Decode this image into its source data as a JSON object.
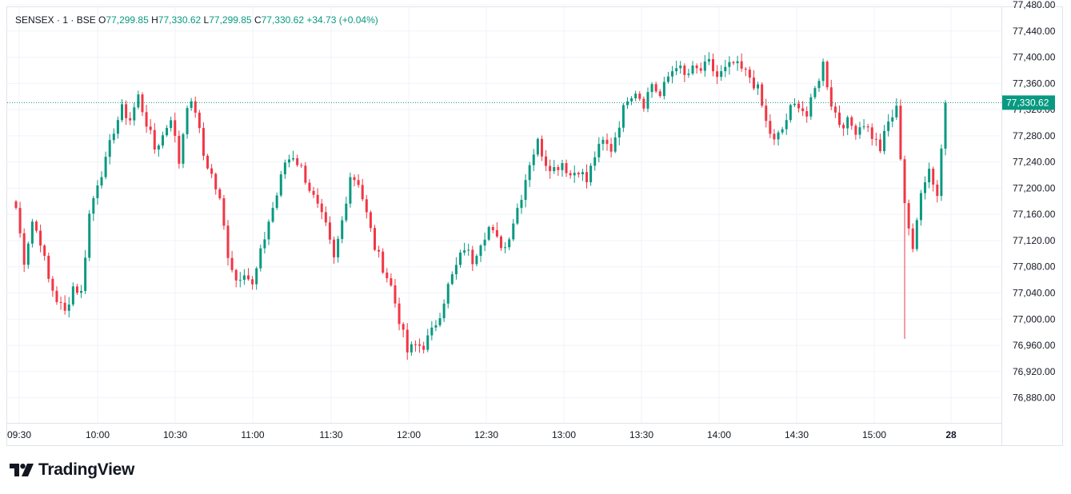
{
  "legend": {
    "symbol": "SENSEX · 1 · BSE",
    "o_label": "O",
    "o_value": "77,299.85",
    "h_label": "H",
    "h_value": "77,330.62",
    "l_label": "L",
    "l_value": "77,299.85",
    "c_label": "C",
    "c_value": "77,330.62",
    "change": "+34.73 (+0.04%)"
  },
  "brand": {
    "logo_text": "TradingView"
  },
  "colors": {
    "up": "#089981",
    "down": "#f23645",
    "grid": "#f0f3fa",
    "text": "#131722"
  },
  "chart_data": {
    "type": "candlestick",
    "symbol": "SENSEX",
    "interval": "1",
    "exchange": "BSE",
    "ylim": [
      76860,
      77480
    ],
    "y_ticks": [
      76880,
      76920,
      76960,
      77000,
      77040,
      77080,
      77120,
      77160,
      77200,
      77240,
      77280,
      77320,
      77360,
      77400,
      77440,
      77480
    ],
    "y_tick_labels": [
      "76,880.00",
      "76,920.00",
      "76,960.00",
      "77,000.00",
      "77,040.00",
      "77,080.00",
      "77,120.00",
      "77,160.00",
      "77,200.00",
      "77,240.00",
      "77,280.00",
      "77,320.00",
      "77,360.00",
      "77,400.00",
      "77,440.00",
      "77,480.00"
    ],
    "x_tick_labels": [
      "09:30",
      "10:00",
      "10:30",
      "11:00",
      "11:30",
      "12:00",
      "12:30",
      "13:00",
      "13:30",
      "14:00",
      "14:30",
      "15:00",
      "28"
    ],
    "x_tick_bold": [
      false,
      false,
      false,
      false,
      false,
      false,
      false,
      false,
      false,
      false,
      false,
      false,
      true
    ],
    "last_price": 77330.62,
    "last_price_label": "77,330.62",
    "grid": true,
    "close_path": [
      [
        0,
        77170
      ],
      [
        2,
        77090
      ],
      [
        4,
        77150
      ],
      [
        6,
        77120
      ],
      [
        8,
        77060
      ],
      [
        10,
        77030
      ],
      [
        12,
        77010
      ],
      [
        14,
        77050
      ],
      [
        16,
        77040
      ],
      [
        18,
        77160
      ],
      [
        20,
        77210
      ],
      [
        22,
        77240
      ],
      [
        24,
        77290
      ],
      [
        26,
        77320
      ],
      [
        28,
        77305
      ],
      [
        30,
        77340
      ],
      [
        32,
        77300
      ],
      [
        34,
        77260
      ],
      [
        36,
        77280
      ],
      [
        38,
        77310
      ],
      [
        40,
        77240
      ],
      [
        42,
        77330
      ],
      [
        44,
        77320
      ],
      [
        46,
        77250
      ],
      [
        48,
        77220
      ],
      [
        50,
        77180
      ],
      [
        52,
        77100
      ],
      [
        54,
        77060
      ],
      [
        56,
        77075
      ],
      [
        58,
        77050
      ],
      [
        60,
        77100
      ],
      [
        62,
        77150
      ],
      [
        64,
        77190
      ],
      [
        66,
        77240
      ],
      [
        68,
        77250
      ],
      [
        70,
        77230
      ],
      [
        72,
        77200
      ],
      [
        74,
        77170
      ],
      [
        76,
        77140
      ],
      [
        78,
        77090
      ],
      [
        80,
        77150
      ],
      [
        82,
        77220
      ],
      [
        84,
        77210
      ],
      [
        86,
        77160
      ],
      [
        88,
        77110
      ],
      [
        90,
        77080
      ],
      [
        92,
        77050
      ],
      [
        94,
        77000
      ],
      [
        96,
        76950
      ],
      [
        98,
        76960
      ],
      [
        100,
        76960
      ],
      [
        102,
        76980
      ],
      [
        104,
        77010
      ],
      [
        106,
        77050
      ],
      [
        108,
        77080
      ],
      [
        110,
        77110
      ],
      [
        112,
        77090
      ],
      [
        114,
        77120
      ],
      [
        116,
        77140
      ],
      [
        118,
        77120
      ],
      [
        120,
        77110
      ],
      [
        122,
        77150
      ],
      [
        124,
        77190
      ],
      [
        126,
        77240
      ],
      [
        128,
        77270
      ],
      [
        130,
        77240
      ],
      [
        132,
        77230
      ],
      [
        134,
        77240
      ],
      [
        136,
        77220
      ],
      [
        138,
        77230
      ],
      [
        140,
        77210
      ],
      [
        142,
        77250
      ],
      [
        144,
        77270
      ],
      [
        146,
        77260
      ],
      [
        148,
        77300
      ],
      [
        150,
        77340
      ],
      [
        152,
        77350
      ],
      [
        154,
        77330
      ],
      [
        156,
        77360
      ],
      [
        158,
        77340
      ],
      [
        160,
        77370
      ],
      [
        162,
        77390
      ],
      [
        164,
        77370
      ],
      [
        166,
        77380
      ],
      [
        168,
        77380
      ],
      [
        170,
        77390
      ],
      [
        172,
        77370
      ],
      [
        174,
        77380
      ],
      [
        176,
        77390
      ],
      [
        178,
        77380
      ],
      [
        180,
        77370
      ],
      [
        182,
        77350
      ],
      [
        184,
        77300
      ],
      [
        186,
        77270
      ],
      [
        188,
        77290
      ],
      [
        190,
        77320
      ],
      [
        192,
        77330
      ],
      [
        194,
        77310
      ],
      [
        196,
        77350
      ],
      [
        198,
        77390
      ],
      [
        200,
        77330
      ],
      [
        202,
        77300
      ],
      [
        204,
        77300
      ],
      [
        206,
        77290
      ],
      [
        208,
        77300
      ],
      [
        210,
        77280
      ],
      [
        212,
        77260
      ],
      [
        214,
        77300
      ],
      [
        216,
        77320
      ],
      [
        218,
        77180
      ],
      [
        220,
        77100
      ],
      [
        222,
        77200
      ],
      [
        224,
        77230
      ],
      [
        226,
        77190
      ],
      [
        228,
        77330.62
      ]
    ]
  }
}
